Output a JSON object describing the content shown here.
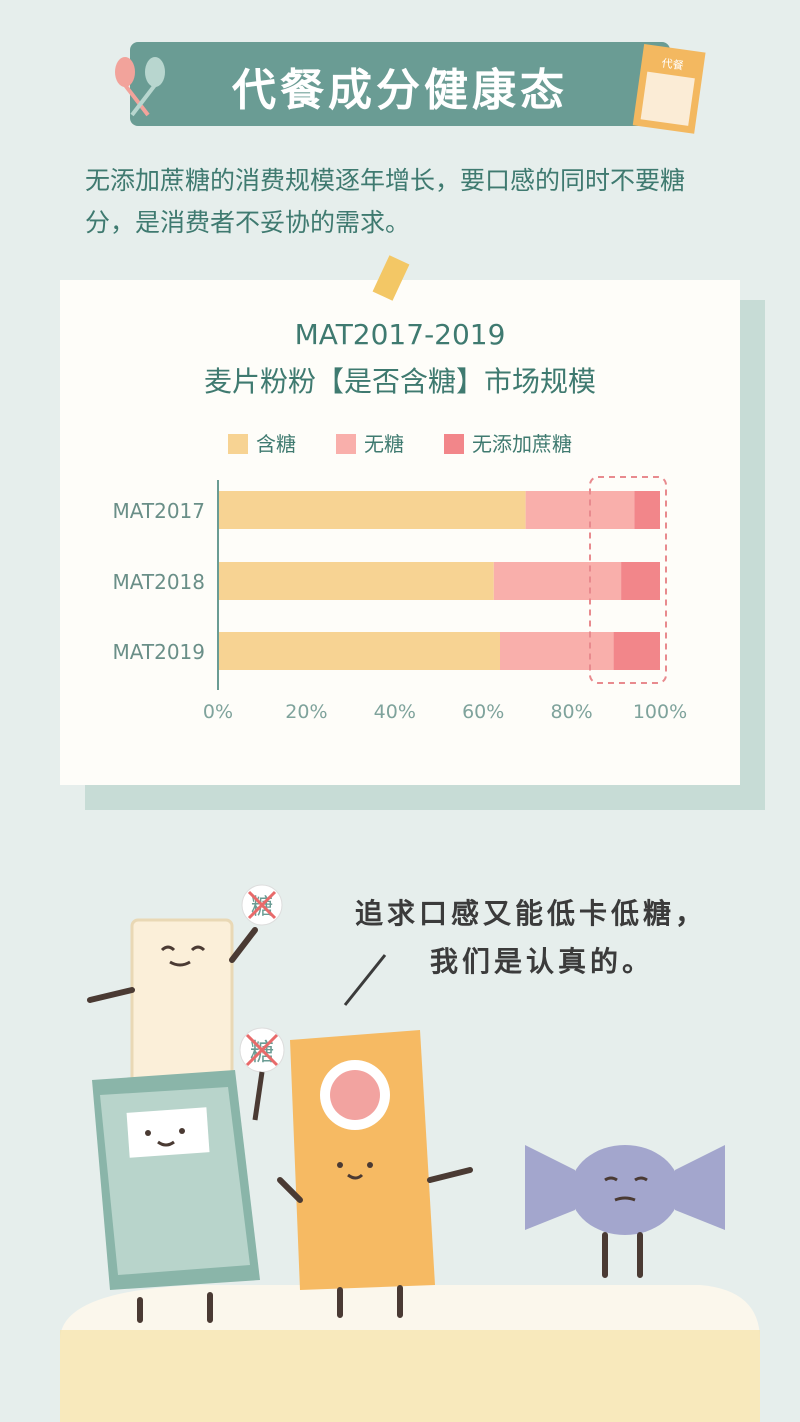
{
  "header": {
    "title": "代餐成分健康态",
    "tag_label": "代餐"
  },
  "intro": {
    "text": "无添加蔗糖的消费规模逐年增长，要口感的同时不要糖分，是消费者不妥协的需求。"
  },
  "chart_data": {
    "type": "bar",
    "orientation": "horizontal",
    "stacked": "percent",
    "title": "MAT2017-2019",
    "subtitle": "麦片粉粉【是否含糖】市场规模",
    "categories": [
      "MAT2017",
      "MAT2018",
      "MAT2019"
    ],
    "series": [
      {
        "name": "含糖",
        "values": [
          69.6,
          62.4,
          63.8
        ],
        "color": "#f7d393"
      },
      {
        "name": "无糖",
        "values": [
          24.6,
          28.8,
          25.7
        ],
        "color": "#f9afab"
      },
      {
        "name": "无添加蔗糖",
        "values": [
          5.8,
          8.8,
          10.5
        ],
        "color": "#f2868a"
      }
    ],
    "xlim": [
      0,
      100
    ],
    "xticks": [
      "0%",
      "20%",
      "40%",
      "60%",
      "80%",
      "100%"
    ],
    "grid": false,
    "legend": "top",
    "highlight": "dashed box around 无添加蔗糖 segment"
  },
  "illustration": {
    "speech": [
      "追求口感又能低卡低糖，",
      "我们是认真的。"
    ],
    "sign_text": "糖"
  },
  "colors": {
    "accent": "#6a9c94",
    "text": "#3f7a70",
    "background": "#e6eeec"
  }
}
